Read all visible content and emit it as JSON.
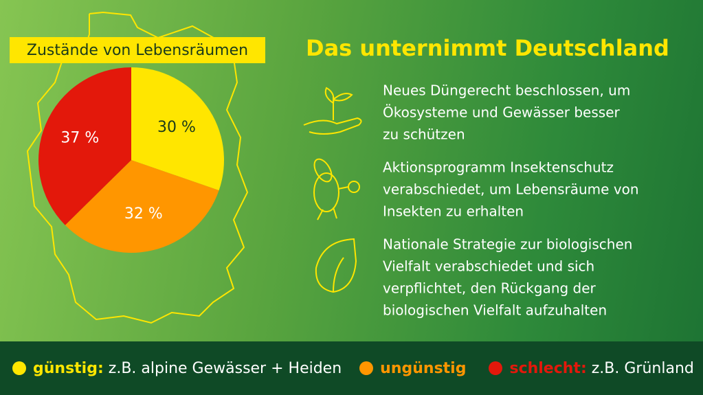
{
  "chart_data": {
    "type": "pie",
    "title": "Zustände von Lebensräumen",
    "categories": [
      "günstig:",
      "ungünstig",
      "schlecht:"
    ],
    "category_notes": [
      "z.B. alpine Gewässer + Heiden",
      null,
      "z.B. Grünland"
    ],
    "values": [
      30,
      32,
      37
    ],
    "value_labels": [
      "30 %",
      "32 %",
      "37 %"
    ],
    "colors": [
      "#ffe600",
      "#ff9600",
      "#e3180b"
    ]
  },
  "measures": {
    "title": "Das unternimmt Deutschland",
    "items": [
      {
        "lines": [
          "Neues Düngerecht beschlossen, um",
          "Ökosysteme und Gewässer besser",
          "zu schützen"
        ]
      },
      {
        "lines": [
          "Aktionsprogramm Insektenschutz",
          "verabschiedet, um Lebensräume von",
          "Insekten zu erhalten"
        ]
      },
      {
        "lines": [
          "Nationale Strategie zur biologischen",
          "Vielfalt verabschiedet und sich",
          "verpflichtet, den Rückgang der",
          "biologischen Vielfalt aufzuhalten"
        ]
      }
    ]
  }
}
